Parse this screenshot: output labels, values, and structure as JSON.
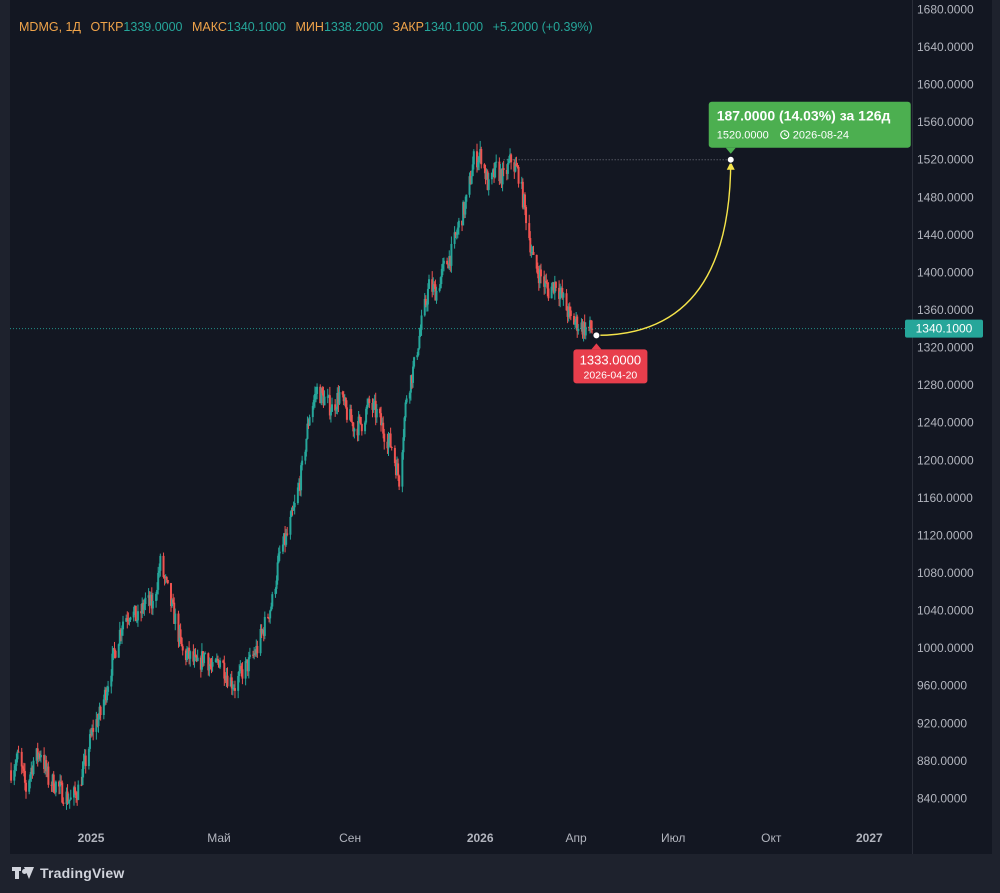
{
  "legend": {
    "symbol": "MDMG, 1Д",
    "open_label": "ОТКР",
    "open": "1339.0000",
    "high_label": "МАКС",
    "high": "1340.1000",
    "low_label": "МИН",
    "low": "1338.2000",
    "close_label": "ЗАКР",
    "close": "1340.1000",
    "change": "+5.2000 (+0.39%)"
  },
  "brand": "TradingView",
  "colors": {
    "up": "#26a69a",
    "down": "#ef5350",
    "projection": "#f5e44a",
    "target_box": "#4caf50",
    "start_box": "#e83e4c",
    "price_label": "#26a69a"
  },
  "chart_data": {
    "type": "candlestick",
    "symbol": "MDMG",
    "interval": "1Д",
    "y_axis": {
      "ticks": [
        "1680.0000",
        "1640.0000",
        "1600.0000",
        "1560.0000",
        "1520.0000",
        "1480.0000",
        "1440.0000",
        "1400.0000",
        "1360.0000",
        "1320.0000",
        "1280.0000",
        "1240.0000",
        "1200.0000",
        "1160.0000",
        "1120.0000",
        "1080.0000",
        "1040.0000",
        "1000.0000",
        "960.0000",
        "920.0000",
        "880.0000",
        "840.0000"
      ],
      "range": [
        816,
        1690
      ]
    },
    "x_axis": {
      "range": [
        "2024-10-17",
        "2027-02-10"
      ],
      "ticks": [
        {
          "label": "2025",
          "date": "2025-01-01",
          "bold": true
        },
        {
          "label": "Май",
          "date": "2025-05-01",
          "bold": false
        },
        {
          "label": "Сен",
          "date": "2025-09-01",
          "bold": false
        },
        {
          "label": "2026",
          "date": "2026-01-01",
          "bold": true
        },
        {
          "label": "Апр",
          "date": "2026-04-01",
          "bold": false
        },
        {
          "label": "Июл",
          "date": "2026-07-01",
          "bold": false
        },
        {
          "label": "Окт",
          "date": "2026-10-01",
          "bold": false
        },
        {
          "label": "2027",
          "date": "2027-01-01",
          "bold": true
        }
      ]
    },
    "price_trend": [
      [
        "2024-10-18",
        870
      ],
      [
        "2024-10-25",
        885
      ],
      [
        "2024-11-01",
        850
      ],
      [
        "2024-11-08",
        880
      ],
      [
        "2024-11-15",
        890
      ],
      [
        "2024-11-22",
        860
      ],
      [
        "2024-11-29",
        855
      ],
      [
        "2024-12-06",
        845
      ],
      [
        "2024-12-13",
        838
      ],
      [
        "2024-12-20",
        850
      ],
      [
        "2024-12-27",
        880
      ],
      [
        "2025-01-03",
        915
      ],
      [
        "2025-01-10",
        930
      ],
      [
        "2025-01-17",
        965
      ],
      [
        "2025-01-24",
        1000
      ],
      [
        "2025-01-31",
        1030
      ],
      [
        "2025-02-07",
        1040
      ],
      [
        "2025-02-14",
        1030
      ],
      [
        "2025-02-21",
        1050
      ],
      [
        "2025-02-28",
        1045
      ],
      [
        "2025-03-07",
        1090
      ],
      [
        "2025-03-14",
        1060
      ],
      [
        "2025-03-21",
        1030
      ],
      [
        "2025-03-28",
        995
      ],
      [
        "2025-04-04",
        990
      ],
      [
        "2025-04-11",
        980
      ],
      [
        "2025-04-18",
        995
      ],
      [
        "2025-04-25",
        975
      ],
      [
        "2025-05-02",
        990
      ],
      [
        "2025-05-09",
        970
      ],
      [
        "2025-05-16",
        960
      ],
      [
        "2025-05-23",
        975
      ],
      [
        "2025-05-30",
        985
      ],
      [
        "2025-06-06",
        1000
      ],
      [
        "2025-06-13",
        1025
      ],
      [
        "2025-06-20",
        1050
      ],
      [
        "2025-06-27",
        1100
      ],
      [
        "2025-07-04",
        1120
      ],
      [
        "2025-07-11",
        1150
      ],
      [
        "2025-07-18",
        1190
      ],
      [
        "2025-07-25",
        1250
      ],
      [
        "2025-08-01",
        1275
      ],
      [
        "2025-08-08",
        1265
      ],
      [
        "2025-08-15",
        1255
      ],
      [
        "2025-08-22",
        1270
      ],
      [
        "2025-08-29",
        1250
      ],
      [
        "2025-09-05",
        1235
      ],
      [
        "2025-09-12",
        1240
      ],
      [
        "2025-09-19",
        1260
      ],
      [
        "2025-09-26",
        1250
      ],
      [
        "2025-10-03",
        1230
      ],
      [
        "2025-10-10",
        1215
      ],
      [
        "2025-10-17",
        1180
      ],
      [
        "2025-10-24",
        1270
      ],
      [
        "2025-10-31",
        1300
      ],
      [
        "2025-11-07",
        1345
      ],
      [
        "2025-11-14",
        1385
      ],
      [
        "2025-11-21",
        1380
      ],
      [
        "2025-11-28",
        1405
      ],
      [
        "2025-12-05",
        1420
      ],
      [
        "2025-12-12",
        1450
      ],
      [
        "2025-12-19",
        1475
      ],
      [
        "2025-12-26",
        1520
      ],
      [
        "2026-01-02",
        1525
      ],
      [
        "2026-01-09",
        1490
      ],
      [
        "2026-01-16",
        1510
      ],
      [
        "2026-01-23",
        1500
      ],
      [
        "2026-01-30",
        1520
      ],
      [
        "2026-02-06",
        1505
      ],
      [
        "2026-02-13",
        1460
      ],
      [
        "2026-02-20",
        1410
      ],
      [
        "2026-02-27",
        1395
      ],
      [
        "2026-03-06",
        1380
      ],
      [
        "2026-03-13",
        1390
      ],
      [
        "2026-03-20",
        1370
      ],
      [
        "2026-03-27",
        1350
      ],
      [
        "2026-04-03",
        1345
      ],
      [
        "2026-04-10",
        1340
      ]
    ],
    "current_price": {
      "value": 1340.1,
      "label": "1340.1000"
    },
    "projection": {
      "start": {
        "date": "2026-04-20",
        "price": 1333.0,
        "price_label": "1333.0000",
        "date_label": "2026-04-20"
      },
      "end": {
        "date": "2026-08-24",
        "price": 1520.0,
        "price_label": "1520.0000",
        "date_label": "2026-08-24"
      },
      "headline": "187.0000 (14.03%) за 126д"
    },
    "grid": false,
    "legend_position": "top-left"
  }
}
